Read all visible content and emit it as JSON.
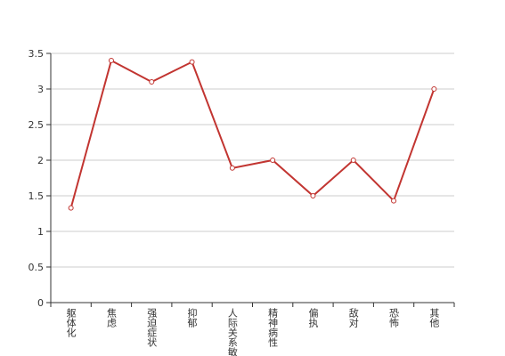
{
  "chart_data": {
    "type": "line",
    "categories": [
      "躯体化",
      "焦虑",
      "强迫症状",
      "抑郁",
      "人际关系敏感",
      "精神病性",
      "偏执",
      "敌对",
      "恐怖",
      "其他"
    ],
    "values": [
      1.33,
      3.4,
      3.1,
      3.38,
      1.89,
      2.0,
      1.5,
      2.0,
      1.43,
      3.0
    ],
    "color": "#c23531",
    "ylim": [
      0,
      3.5
    ],
    "yticks": [
      0,
      0.5,
      1,
      1.5,
      2,
      2.5,
      3,
      3.5
    ],
    "grid": true
  }
}
